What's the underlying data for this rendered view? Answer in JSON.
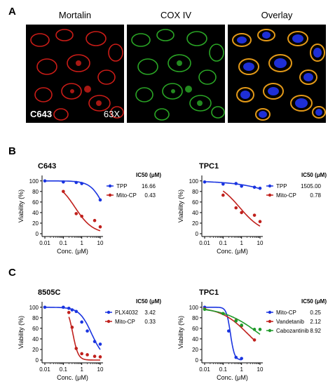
{
  "panels": {
    "a": "A",
    "b": "B",
    "c": "C"
  },
  "microscopy": {
    "labels": [
      "Mortalin",
      "COX IV",
      "Overlay"
    ],
    "cell_line": "C643",
    "magnification": "63X",
    "channel_colors": {
      "red": "#e0201a",
      "green": "#2fb82a",
      "blue": "#1e2fd6"
    }
  },
  "chart_data": [
    {
      "type": "line",
      "title": "C643",
      "xlabel": "Conc. (μM)",
      "ylabel": "Viability (%)",
      "xscale": "log",
      "xticks": [
        "0.01",
        "0.1",
        "1",
        "10"
      ],
      "yticks": [
        "0",
        "20",
        "40",
        "60",
        "80",
        "100"
      ],
      "ylim": [
        0,
        105
      ],
      "legend_title": "IC50 (μM)",
      "series": [
        {
          "name": "TPP",
          "ic50": "16.66",
          "color": "#1a34e0",
          "points": [
            [
              0.01,
              100
            ],
            [
              0.1,
              98
            ],
            [
              0.5,
              97
            ],
            [
              1,
              95
            ],
            [
              10,
              64
            ]
          ],
          "curve": {
            "ic50": 16.66,
            "hill": 1.2
          }
        },
        {
          "name": "Mito-CP",
          "ic50": "0.43",
          "color": "#c0201c",
          "points": [
            [
              0.1,
              80
            ],
            [
              0.5,
              38
            ],
            [
              1,
              33
            ],
            [
              5,
              25
            ],
            [
              10,
              13
            ]
          ],
          "curve": {
            "ic50": 0.43,
            "hill": 0.9
          }
        }
      ]
    },
    {
      "type": "line",
      "title": "TPC1",
      "xlabel": "Conc. (μM)",
      "ylabel": "Viability (%)",
      "xscale": "log",
      "xticks": [
        "0.01",
        "0.1",
        "1",
        "10"
      ],
      "yticks": [
        "0",
        "20",
        "40",
        "60",
        "80",
        "100"
      ],
      "ylim": [
        0,
        105
      ],
      "legend_title": "IC50 (μM)",
      "series": [
        {
          "name": "TPP",
          "ic50": "1505.00",
          "color": "#1a34e0",
          "points": [
            [
              0.01,
              98
            ],
            [
              0.1,
              94
            ],
            [
              0.5,
              95
            ],
            [
              1,
              90
            ],
            [
              5,
              88
            ],
            [
              10,
              86
            ]
          ],
          "curve": {
            "ic50": 1505,
            "hill": 0.35
          }
        },
        {
          "name": "Mito-CP",
          "ic50": "0.78",
          "color": "#c0201c",
          "points": [
            [
              0.1,
              73
            ],
            [
              0.5,
              49
            ],
            [
              1,
              40
            ],
            [
              5,
              35
            ],
            [
              10,
              23
            ]
          ],
          "curve": {
            "ic50": 0.78,
            "hill": 0.7
          }
        }
      ]
    },
    {
      "type": "line",
      "title": "8505C",
      "xlabel": "Conc. (μM)",
      "ylabel": "Viability (%)",
      "xscale": "log",
      "xticks": [
        "0.01",
        "0.1",
        "1",
        "10"
      ],
      "yticks": [
        "0",
        "20",
        "40",
        "60",
        "80",
        "100"
      ],
      "ylim": [
        0,
        105
      ],
      "legend_title": "IC50 (μM)",
      "series": [
        {
          "name": "PLX4032",
          "ic50": "3.42",
          "color": "#1a34e0",
          "points": [
            [
              0.01,
              100
            ],
            [
              0.1,
              100
            ],
            [
              0.2,
              98
            ],
            [
              0.3,
              95
            ],
            [
              0.5,
              92
            ],
            [
              1,
              72
            ],
            [
              2,
              55
            ],
            [
              5,
              35
            ],
            [
              10,
              30
            ]
          ],
          "curve": {
            "ic50": 3.42,
            "hill": 1.3
          }
        },
        {
          "name": "Mito-CP",
          "ic50": "0.33",
          "color": "#c0201c",
          "points": [
            [
              0.2,
              90
            ],
            [
              0.3,
              62
            ],
            [
              0.5,
              22
            ],
            [
              1,
              12
            ],
            [
              2,
              10
            ],
            [
              5,
              7
            ],
            [
              10,
              6
            ]
          ],
          "curve": {
            "ic50": 0.33,
            "hill": 3.0
          }
        }
      ]
    },
    {
      "type": "line",
      "title": "TPC1",
      "xlabel": "Conc. (μM)",
      "ylabel": "Viability (%)",
      "xscale": "log",
      "xticks": [
        "0.01",
        "0.1",
        "1",
        "10"
      ],
      "yticks": [
        "0",
        "20",
        "40",
        "60",
        "80",
        "100"
      ],
      "ylim": [
        0,
        105
      ],
      "legend_title": "IC50 (μM)",
      "series": [
        {
          "name": "Mito-CP",
          "ic50": "0.25",
          "color": "#1a34e0",
          "points": [
            [
              0.01,
              100
            ],
            [
              0.2,
              55
            ],
            [
              0.5,
              5
            ],
            [
              1,
              3
            ]
          ],
          "curve": {
            "ic50": 0.25,
            "hill": 4.0
          }
        },
        {
          "name": "Vandetanib",
          "ic50": "2.12",
          "color": "#c0201c",
          "points": [
            [
              0.01,
              97
            ],
            [
              0.1,
              88
            ],
            [
              0.5,
              75
            ],
            [
              1,
              65
            ],
            [
              5,
              38
            ]
          ],
          "curve": {
            "ic50": 2.12,
            "hill": 0.6
          }
        },
        {
          "name": "Cabozantinib",
          "ic50": "8.92",
          "color": "#1f9a2a",
          "points": [
            [
              0.01,
              96
            ],
            [
              0.1,
              88
            ],
            [
              0.5,
              74
            ],
            [
              1,
              66
            ],
            [
              5,
              58
            ],
            [
              10,
              58
            ]
          ],
          "curve": {
            "ic50": 8.92,
            "hill": 0.45
          }
        }
      ]
    }
  ]
}
